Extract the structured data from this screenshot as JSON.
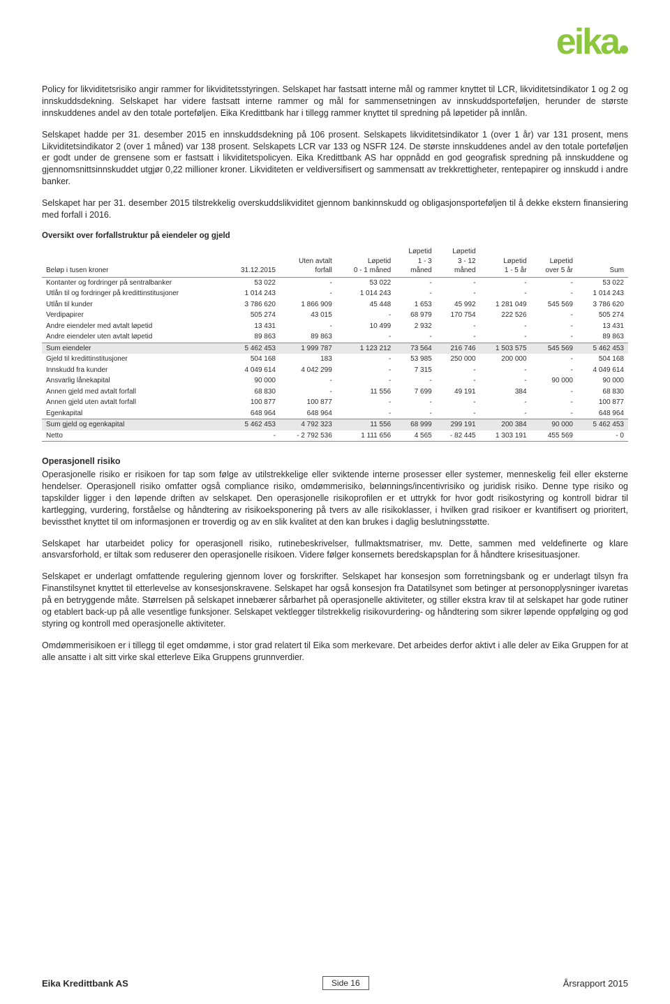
{
  "logo_text": "eika",
  "paragraphs": {
    "p1": "Policy for likviditetsrisiko angir rammer for likviditetsstyringen. Selskapet har fastsatt interne mål og rammer knyttet til LCR, likviditetsindikator 1 og 2 og innskuddsdekning. Selskapet har videre fastsatt interne rammer og mål for sammensetningen av innskuddsporteføljen, herunder de største innskuddenes andel av den totale porteføljen. Eika Kredittbank har i tillegg rammer knyttet til spredning på løpetider på innlån.",
    "p2": "Selskapet hadde per 31. desember 2015 en innskuddsdekning på 106 prosent. Selskapets likviditetsindikator 1 (over 1 år) var 131 prosent, mens Likviditetsindikator 2 (over 1 måned) var 138 prosent. Selskapets LCR var 133 og NSFR 124. De største innskuddenes andel av den totale porteføljen er godt under de grensene som er fastsatt i likviditetspolicyen. Eika Kredittbank AS har oppnådd en god geografisk spredning på innskuddene og gjennomsnittsinnskuddet utgjør 0,22 millioner kroner. Likviditeten er veldiversifisert og sammensatt av trekkrettigheter, rentepapirer og innskudd i andre banker.",
    "p3": "Selskapet har per 31. desember 2015 tilstrekkelig overskuddslikviditet gjennom bankinnskudd og obligasjonsporteføljen til å dekke ekstern finansiering med forfall i 2016.",
    "op_title": "Operasjonell risiko",
    "op1": "Operasjonelle risiko er risikoen for tap som følge av utilstrekkelige eller sviktende interne prosesser eller systemer, menneskelig feil eller eksterne hendelser. Operasjonell risiko omfatter også compliance risiko, omdømmerisiko, belønnings/incentivrisiko og juridisk risiko. Denne type risiko og tapskilder ligger i den løpende driften av selskapet. Den operasjonelle risikoprofilen er et uttrykk for hvor godt risikostyring og kontroll bidrar til kartlegging, vurdering, forståelse og håndtering av risikoeksponering på tvers av alle risikoklasser, i hvilken grad risikoer er kvantifisert og prioritert, bevissthet knyttet til om informasjonen er troverdig og av en slik kvalitet at den kan brukes i daglig beslutningsstøtte.",
    "op2": "Selskapet har utarbeidet policy for operasjonell risiko, rutinebeskrivelser, fullmaktsmatriser, mv. Dette, sammen med veldefinerte og klare ansvarsforhold, er tiltak som reduserer den operasjonelle risikoen. Videre følger konsernets beredskapsplan for å håndtere krisesituasjoner.",
    "op3": "Selskapet er underlagt omfattende regulering gjennom lover og forskrifter. Selskapet har konsesjon som forretningsbank og er underlagt tilsyn fra Finanstilsynet knyttet til etterlevelse av konsesjonskravene. Selskapet har også konsesjon fra Datatilsynet som betinger at personopplysninger ivaretas på en betryggende måte. Størrelsen på selskapet innebærer sårbarhet på operasjonelle aktiviteter, og stiller ekstra krav til at selskapet har gode rutiner og etablert back-up på alle vesentlige funksjoner. Selskapet vektlegger tilstrekkelig risikovurdering- og håndtering som sikrer løpende oppfølging og god styring og kontroll med operasjonelle aktiviteter.",
    "op4": "Omdømmerisikoen er i tillegg til eget omdømme, i stor grad relatert til Eika som merkevare. Det arbeides derfor aktivt i alle deler av Eika Gruppen for at alle ansatte i alt sitt virke skal etterleve Eika Gruppens grunnverdier."
  },
  "table": {
    "title": "Oversikt over forfallstruktur på eiendeler og gjeld",
    "columns": [
      "Beløp i tusen kroner",
      "31.12.2015",
      "Uten avtalt forfall",
      "Løpetid 0 - 1 måned",
      "Løpetid 1 - 3 måned",
      "Løpetid 3 - 12 måned",
      "Løpetid 1 - 5 år",
      "Løpetid over 5 år",
      "Sum"
    ],
    "col0": "Beløp i tusen kroner",
    "col1": "31.12.2015",
    "col2_l1": "Uten avtalt",
    "col2_l2": "forfall",
    "col3_l1": "Løpetid",
    "col3_l2": "0 - 1 måned",
    "col4_l1": "Løpetid",
    "col4_l2": "1 - 3",
    "col4_l3": "måned",
    "col5_l1": "Løpetid",
    "col5_l2": "3 - 12",
    "col5_l3": "måned",
    "col6_l1": "Løpetid",
    "col6_l2": "1 - 5 år",
    "col7_l1": "Løpetid",
    "col7_l2": "over 5 år",
    "col8": "Sum",
    "assets": [
      {
        "label": "Kontanter og fordringer på sentralbanker",
        "c1": "53 022",
        "c2": "-",
        "c3": "53 022",
        "c4": "-",
        "c5": "-",
        "c6": "-",
        "c7": "-",
        "c8": "53 022"
      },
      {
        "label": "Utlån til og fordringer på kredittinstitusjoner",
        "c1": "1 014 243",
        "c2": "-",
        "c3": "1 014 243",
        "c4": "-",
        "c5": "-",
        "c6": "-",
        "c7": "-",
        "c8": "1 014 243"
      },
      {
        "label": "Utlån til kunder",
        "c1": "3 786 620",
        "c2": "1 866 909",
        "c3": "45 448",
        "c4": "1 653",
        "c5": "45 992",
        "c6": "1 281 049",
        "c7": "545 569",
        "c8": "3 786 620"
      },
      {
        "label": "Verdipapirer",
        "c1": "505 274",
        "c2": "43 015",
        "c3": "-",
        "c4": "68 979",
        "c5": "170 754",
        "c6": "222 526",
        "c7": "-",
        "c8": "505 274"
      },
      {
        "label": "Andre eiendeler med avtalt løpetid",
        "c1": "13 431",
        "c2": "-",
        "c3": "10 499",
        "c4": "2 932",
        "c5": "-",
        "c6": "-",
        "c7": "-",
        "c8": "13 431"
      },
      {
        "label": "Andre eiendeler uten avtalt løpetid",
        "c1": "89 863",
        "c2": "89 863",
        "c3": "-",
        "c4": "-",
        "c5": "-",
        "c6": "-",
        "c7": "-",
        "c8": "89 863"
      }
    ],
    "assets_sum": {
      "label": "Sum eiendeler",
      "c1": "5 462 453",
      "c2": "1 999 787",
      "c3": "1 123 212",
      "c4": "73 564",
      "c5": "216 746",
      "c6": "1 503 575",
      "c7": "545 569",
      "c8": "5 462 453"
    },
    "liab": [
      {
        "label": "Gjeld til kredittinstitusjoner",
        "c1": "504 168",
        "c2": "183",
        "c3": "-",
        "c4": "53 985",
        "c5": "250 000",
        "c6": "200 000",
        "c7": "-",
        "c8": "504 168"
      },
      {
        "label": "Innskudd fra kunder",
        "c1": "4 049 614",
        "c2": "4 042 299",
        "c3": "-",
        "c4": "7 315",
        "c5": "-",
        "c6": "-",
        "c7": "-",
        "c8": "4 049 614"
      },
      {
        "label": "Ansvarlig lånekapital",
        "c1": "90 000",
        "c2": "-",
        "c3": "-",
        "c4": "-",
        "c5": "-",
        "c6": "-",
        "c7": "90 000",
        "c8": "90 000"
      },
      {
        "label": "Annen gjeld med avtalt forfall",
        "c1": "68 830",
        "c2": "-",
        "c3": "11 556",
        "c4": "7 699",
        "c5": "49 191",
        "c6": "384",
        "c7": "-",
        "c8": "68 830"
      },
      {
        "label": "Annen gjeld uten avtalt forfall",
        "c1": "100 877",
        "c2": "100 877",
        "c3": "-",
        "c4": "-",
        "c5": "-",
        "c6": "-",
        "c7": "-",
        "c8": "100 877"
      },
      {
        "label": "Egenkapital",
        "c1": "648 964",
        "c2": "648 964",
        "c3": "-",
        "c4": "-",
        "c5": "-",
        "c6": "-",
        "c7": "-",
        "c8": "648 964"
      }
    ],
    "liab_sum": {
      "label": "Sum gjeld og egenkapital",
      "c1": "5 462 453",
      "c2": "4 792 323",
      "c3": "11 556",
      "c4": "68 999",
      "c5": "299 191",
      "c6": "200 384",
      "c7": "90 000",
      "c8": "5 462 453"
    },
    "netto": {
      "label": "Netto",
      "c1": "-",
      "c2": "- 2 792 536",
      "c3": "1 111 656",
      "c4": "4 565",
      "c5": "- 82 445",
      "c6": "1 303 191",
      "c7": "455 569",
      "c8": "- 0"
    }
  },
  "footer": {
    "left": "Eika Kredittbank AS",
    "center": "Side 16",
    "right": "Årsrapport 2015"
  }
}
